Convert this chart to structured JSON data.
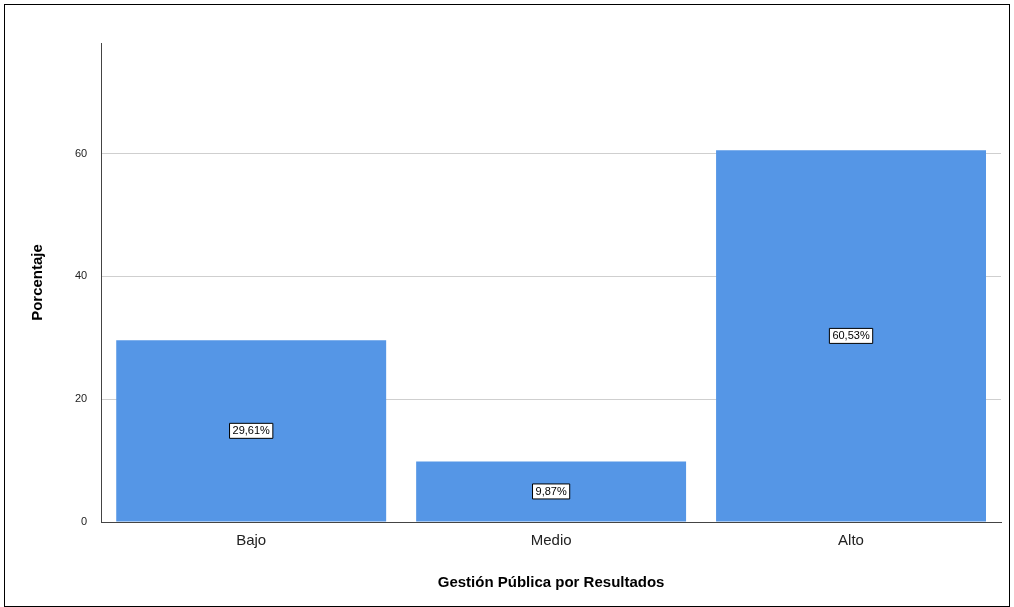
{
  "chart_data": {
    "type": "bar",
    "xlabel": "Gestión Pública por Resultados",
    "ylabel": "Porcentaje",
    "categories": [
      "Bajo",
      "Medio",
      "Alto"
    ],
    "values": [
      29.61,
      9.87,
      60.53
    ],
    "value_labels": [
      "29,61%",
      "9,87%",
      "60,53%"
    ],
    "color": "#5596e6",
    "ylim": [
      0,
      78
    ],
    "yticks": [
      0,
      20,
      40,
      60
    ],
    "grid": "y",
    "legend": false
  }
}
